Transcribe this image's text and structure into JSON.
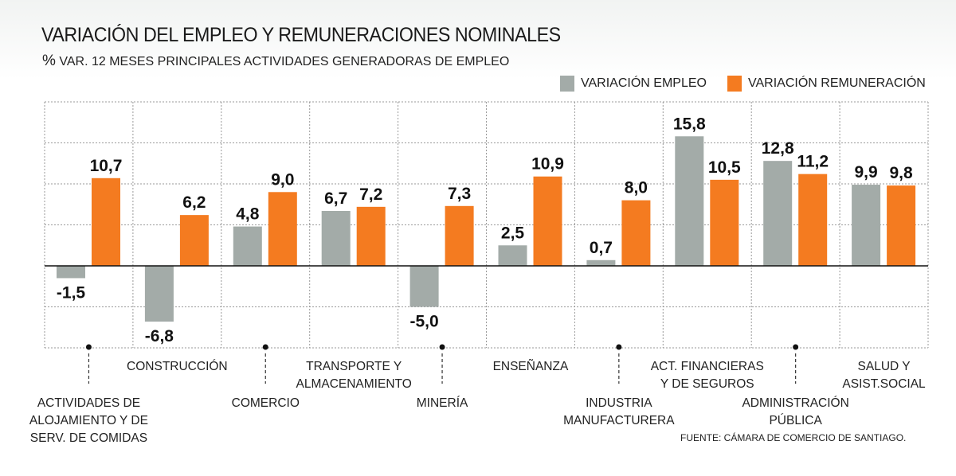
{
  "header": {
    "title": "VARIACIÓN DEL EMPLEO Y REMUNERACIONES NOMINALES",
    "subtitle_prefix": "%",
    "subtitle": "VAR. 12 MESES PRINCIPALES ACTIVIDADES GENERADORAS DE EMPLEO"
  },
  "source": "FUENTE: CÁMARA DE COMERCIO DE SANTIAGO.",
  "colors": {
    "empleo": "#a3aba8",
    "remuneracion": "#f47b20",
    "grid": "#9a9a9a",
    "zero_line": "#111111"
  },
  "chart_data": {
    "type": "bar",
    "legend_position": "top-right",
    "grid": true,
    "ylim": [
      -8,
      22
    ],
    "categories": [
      "ACTIVIDADES DE ALOJAMIENTO Y DE SERV. DE COMIDAS",
      "CONSTRUCCIÓN",
      "COMERCIO",
      "TRANSPORTE Y ALMACENAMIENTO",
      "MINERÍA",
      "ENSEÑANZA",
      "INDUSTRIA MANUFACTURERA",
      "ACT. FINANCIERAS Y DE SEGUROS",
      "ADMINISTRACIÓN PÚBLICA",
      "SALUD Y ASIST.SOCIAL"
    ],
    "category_lines": [
      [
        "ACTIVIDADES DE",
        "ALOJAMIENTO Y DE",
        "SERV. DE COMIDAS"
      ],
      [
        "CONSTRUCCIÓN"
      ],
      [
        "COMERCIO"
      ],
      [
        "TRANSPORTE Y",
        "ALMACENAMIENTO"
      ],
      [
        "MINERÍA"
      ],
      [
        "ENSEÑANZA"
      ],
      [
        "INDUSTRIA",
        "MANUFACTURERA"
      ],
      [
        "ACT. FINANCIERAS",
        "Y DE SEGUROS"
      ],
      [
        "ADMINISTRACIÓN",
        "PÚBLICA"
      ],
      [
        "SALUD Y",
        "ASIST.SOCIAL"
      ]
    ],
    "series": [
      {
        "name": "VARIACIÓN EMPLEO",
        "values": [
          -1.5,
          -6.8,
          4.8,
          6.7,
          -5.0,
          2.5,
          0.7,
          15.8,
          12.8,
          9.9
        ],
        "labels": [
          "-1,5",
          "-6,8",
          "4,8",
          "6,7",
          "-5,0",
          "2,5",
          "0,7",
          "15,8",
          "12,8",
          "9,9"
        ]
      },
      {
        "name": "VARIACIÓN REMUNERACIÓN",
        "values": [
          10.7,
          6.2,
          9.0,
          7.2,
          7.3,
          10.9,
          8.0,
          10.5,
          11.2,
          9.8
        ],
        "labels": [
          "10,7",
          "6,2",
          "9,0",
          "7,2",
          "7,3",
          "10,9",
          "8,0",
          "10,5",
          "11,2",
          "9,8"
        ]
      }
    ]
  }
}
